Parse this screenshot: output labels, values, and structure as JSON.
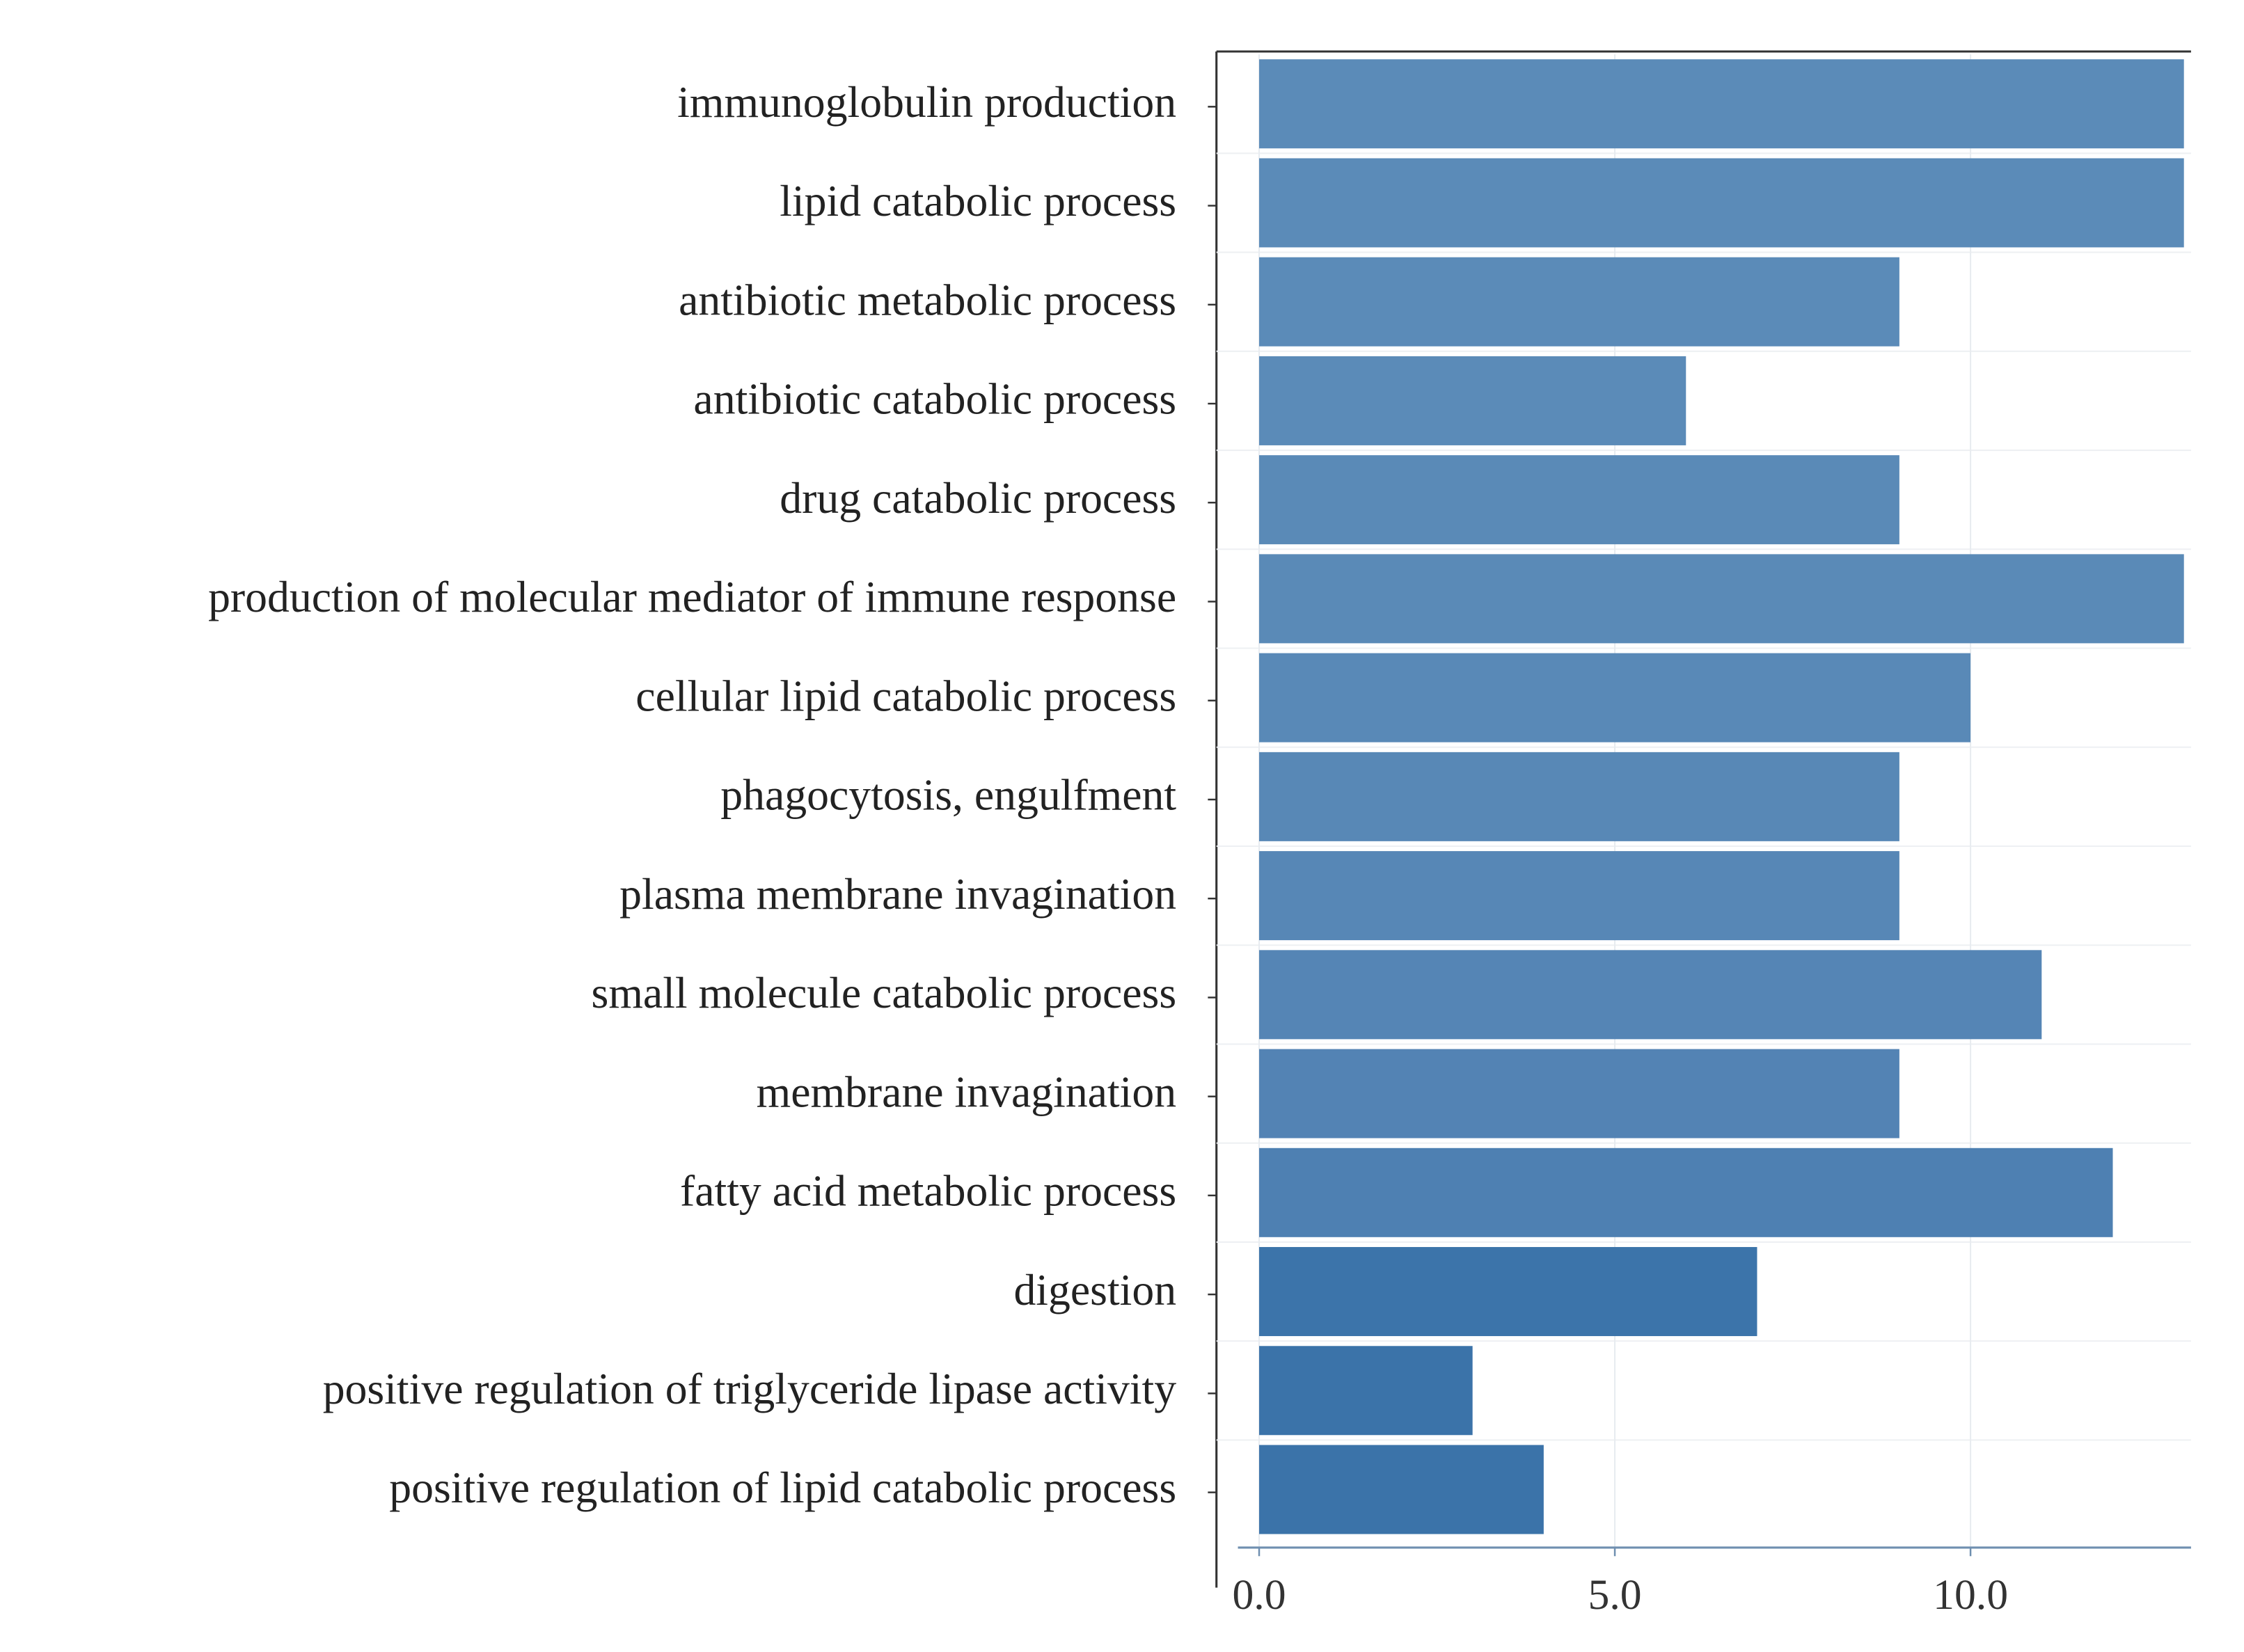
{
  "chart_data": {
    "type": "barh",
    "categories": [
      "immunoglobulin production",
      "lipid catabolic process",
      "antibiotic metabolic process",
      "antibiotic catabolic process",
      "drug catabolic process",
      "production of molecular mediator of immune response",
      "cellular lipid catabolic process",
      "phagocytosis, engulfment",
      "plasma membrane invagination",
      "small molecule catabolic process",
      "membrane invagination",
      "fatty acid metabolic process",
      "digestion",
      "positive regulation of triglyceride lipase activity",
      "positive regulation of lipid catabolic process"
    ],
    "values": [
      13,
      13,
      9,
      6,
      9,
      13,
      10,
      9,
      9,
      11,
      9,
      12,
      7,
      3,
      4
    ],
    "colors": [
      "#5b8bb8",
      "#5b8bb8",
      "#5b8bb8",
      "#5b8bb8",
      "#5a8ab7",
      "#5a8ab7",
      "#5989b7",
      "#5888b6",
      "#5787b6",
      "#5585b5",
      "#5383b4",
      "#4e80b2",
      "#3c74aa",
      "#3b73a9",
      "#3b73a9"
    ],
    "xlim": [
      -0.6,
      13.1
    ],
    "xticks": [
      {
        "value": 0,
        "label": "0.0"
      },
      {
        "value": 5,
        "label": "5.0"
      },
      {
        "value": 10,
        "label": "10.0"
      }
    ],
    "grid": true
  }
}
